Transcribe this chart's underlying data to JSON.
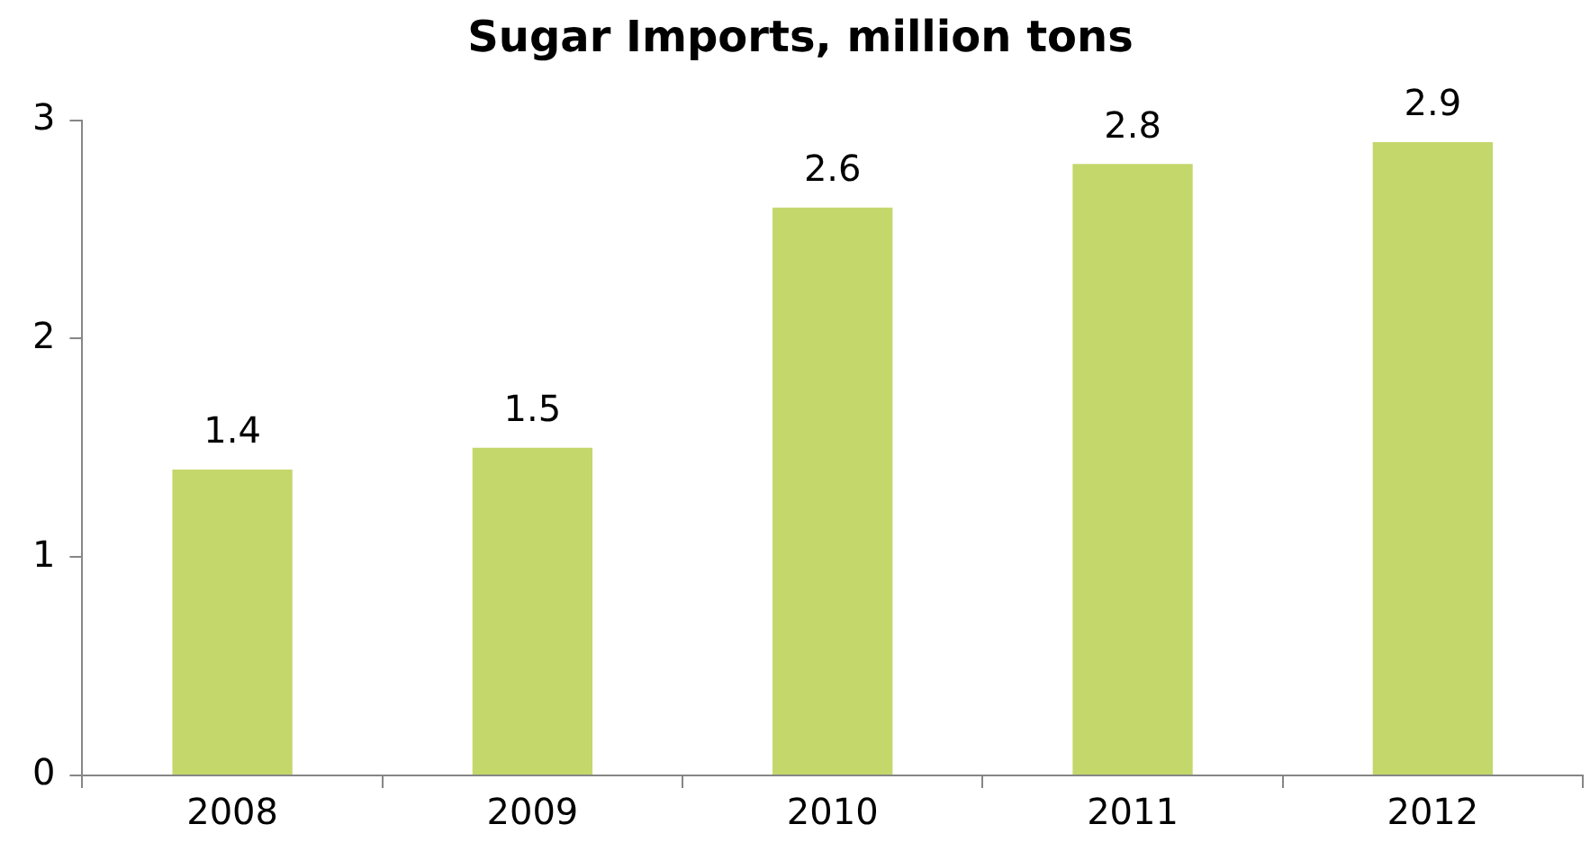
{
  "chart_data": {
    "type": "bar",
    "title": "Sugar Imports, million tons",
    "categories": [
      "2008",
      "2009",
      "2010",
      "2011",
      "2012"
    ],
    "values": [
      1.4,
      1.5,
      2.6,
      2.8,
      2.9
    ],
    "color": "#c3d76b",
    "ylim": [
      0,
      3
    ],
    "yticks": [
      0,
      1,
      2,
      3
    ],
    "grid": false,
    "data_labels": true
  }
}
